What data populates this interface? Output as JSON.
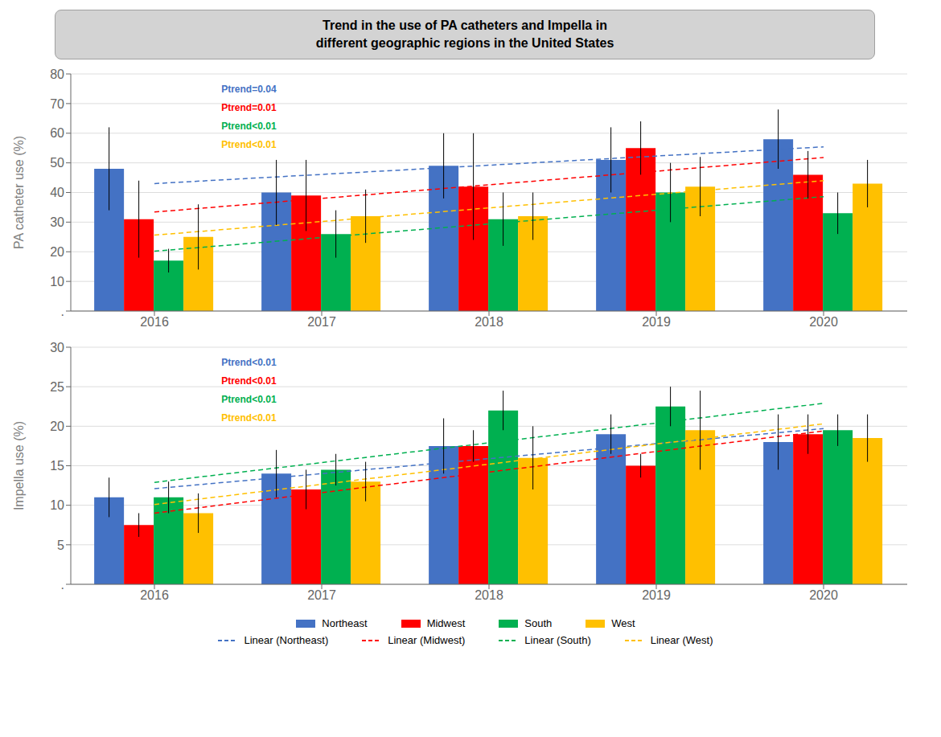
{
  "chart_data": [
    {
      "type": "bar",
      "title": "Trend in the use of PA catheters and Impella in\ndifferent geographic regions in the United States",
      "categories": [
        "2016",
        "2017",
        "2018",
        "2019",
        "2020"
      ],
      "y_label": "PA catheter use (%)",
      "ylim": [
        0,
        80
      ],
      "yticks": [
        {
          "value": 0,
          "label": "."
        },
        10,
        20,
        30,
        40,
        50,
        60,
        70,
        80
      ],
      "grid": true,
      "annotations": [
        {
          "text": "Ptrend=0.04",
          "color": "#4472C4"
        },
        {
          "text": "Ptrend=0.01",
          "color": "#FF0000"
        },
        {
          "text": "Ptrend<0.01",
          "color": "#00B050"
        },
        {
          "text": "Ptrend<0.01",
          "color": "#FFC000"
        }
      ],
      "series": [
        {
          "name": "Linear (Northeast)",
          "type": "line",
          "line_style": "dashed",
          "color": "#4472C4",
          "values": [
            43.0,
            46.1,
            49.2,
            52.3,
            55.4
          ]
        },
        {
          "name": "Linear (Midwest)",
          "type": "line",
          "line_style": "dashed",
          "color": "#FF0000",
          "values": [
            33.4,
            38.0,
            42.6,
            47.2,
            51.8
          ]
        },
        {
          "name": "Linear (South)",
          "type": "line",
          "line_style": "dashed",
          "color": "#00B050",
          "values": [
            20.2,
            24.8,
            29.4,
            34.0,
            38.6
          ]
        },
        {
          "name": "Linear (West)",
          "type": "line",
          "line_style": "dashed",
          "color": "#FFC000",
          "values": [
            25.6,
            30.2,
            34.8,
            39.4,
            44.0
          ]
        },
        {
          "name": "Northeast",
          "type": "bar",
          "color": "#4472C4",
          "values": [
            48,
            40,
            49,
            51,
            58
          ],
          "errors": [
            14,
            11,
            11,
            11,
            10
          ]
        },
        {
          "name": "Midwest",
          "type": "bar",
          "color": "#FF0000",
          "values": [
            31,
            39,
            42,
            55,
            46
          ],
          "errors": [
            13,
            12,
            18,
            9,
            8
          ]
        },
        {
          "name": "South",
          "type": "bar",
          "color": "#00B050",
          "values": [
            17,
            26,
            31,
            40,
            33
          ],
          "errors": [
            4,
            8,
            9,
            10,
            7
          ]
        },
        {
          "name": "West",
          "type": "bar",
          "color": "#FFC000",
          "values": [
            25,
            32,
            32,
            42,
            43
          ],
          "errors": [
            11,
            9,
            8,
            10,
            8
          ]
        }
      ]
    },
    {
      "type": "bar",
      "categories": [
        "2016",
        "2017",
        "2018",
        "2019",
        "2020"
      ],
      "y_label": "Impella use (%)",
      "ylim": [
        0,
        30
      ],
      "yticks": [
        {
          "value": 0,
          "label": "."
        },
        5,
        10,
        15,
        20,
        25,
        30
      ],
      "grid": true,
      "legend": "bottom",
      "annotations": [
        {
          "text": "Ptrend<0.01",
          "color": "#4472C4"
        },
        {
          "text": "Ptrend<0.01",
          "color": "#FF0000"
        },
        {
          "text": "Ptrend<0.01",
          "color": "#00B050"
        },
        {
          "text": "Ptrend<0.01",
          "color": "#FFC000"
        }
      ],
      "series": [
        {
          "name": "Linear (Northeast)",
          "type": "line",
          "line_style": "dashed",
          "color": "#4472C4",
          "values": [
            12.1,
            14.0,
            15.9,
            17.8,
            19.7
          ]
        },
        {
          "name": "Linear (Midwest)",
          "type": "line",
          "line_style": "dashed",
          "color": "#FF0000",
          "values": [
            9.0,
            11.6,
            14.2,
            16.8,
            19.4
          ]
        },
        {
          "name": "Linear (South)",
          "type": "line",
          "line_style": "dashed",
          "color": "#00B050",
          "values": [
            12.9,
            15.4,
            17.9,
            20.4,
            22.9
          ]
        },
        {
          "name": "Linear (West)",
          "type": "line",
          "line_style": "dashed",
          "color": "#FFC000",
          "values": [
            10.1,
            12.65,
            15.2,
            17.75,
            20.3
          ]
        },
        {
          "name": "Northeast",
          "type": "bar",
          "color": "#4472C4",
          "values": [
            11,
            14,
            17.5,
            19,
            18
          ],
          "errors": [
            2.5,
            3,
            3.5,
            2.5,
            3.5
          ]
        },
        {
          "name": "Midwest",
          "type": "bar",
          "color": "#FF0000",
          "values": [
            7.5,
            12,
            17.5,
            15,
            19
          ],
          "errors": [
            1.5,
            2.5,
            2,
            1.5,
            2.5
          ]
        },
        {
          "name": "South",
          "type": "bar",
          "color": "#00B050",
          "values": [
            11,
            14.5,
            22,
            22.5,
            19.5
          ],
          "errors": [
            2,
            2,
            2.5,
            2.5,
            2
          ]
        },
        {
          "name": "West",
          "type": "bar",
          "color": "#FFC000",
          "values": [
            9,
            13,
            16,
            19.5,
            18.5
          ],
          "errors": [
            2.5,
            2.5,
            4,
            5,
            3
          ]
        }
      ]
    }
  ]
}
